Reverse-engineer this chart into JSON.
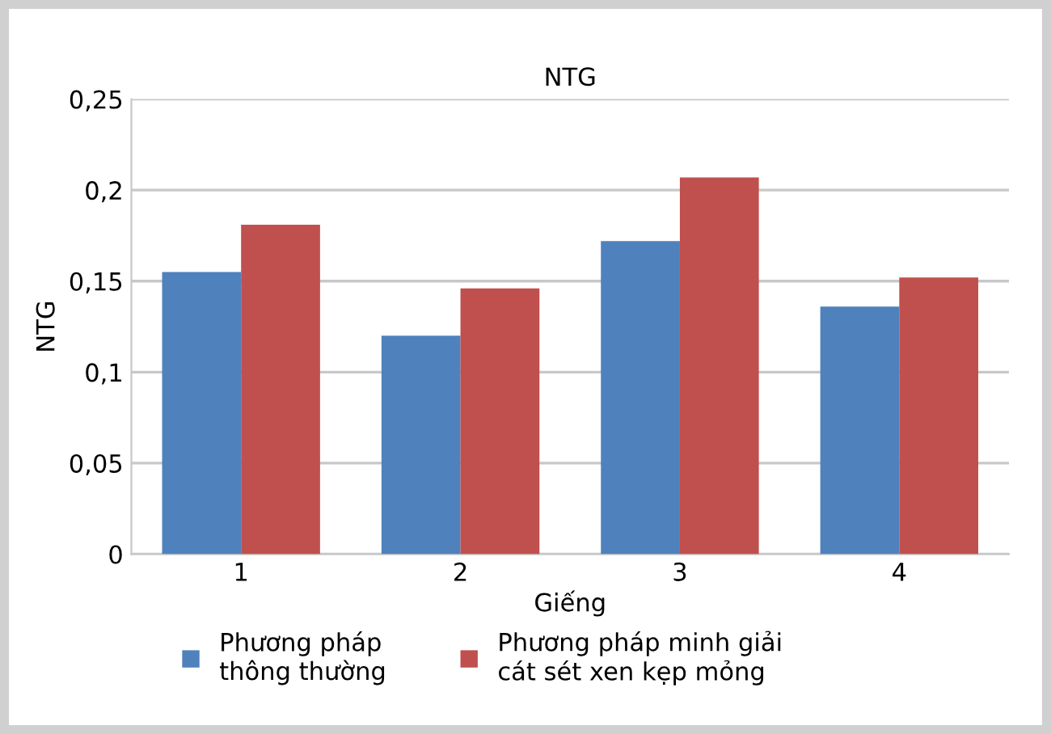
{
  "chart_data": {
    "type": "bar",
    "title": "NTG",
    "xlabel": "Giếng",
    "ylabel": "NTG",
    "categories": [
      "1",
      "2",
      "3",
      "4"
    ],
    "series": [
      {
        "name": "Phương pháp\nthông thường",
        "color": "#4f81bd",
        "values": [
          0.155,
          0.12,
          0.172,
          0.136
        ]
      },
      {
        "name": "Phương pháp minh giải\ncát sét xen kẹp mỏng",
        "color": "#c0504d",
        "values": [
          0.181,
          0.146,
          0.207,
          0.152
        ]
      }
    ],
    "ylim": [
      0,
      0.25
    ],
    "yticks": [
      {
        "value": 0,
        "label": "0"
      },
      {
        "value": 0.05,
        "label": "0,05"
      },
      {
        "value": 0.1,
        "label": "0,1"
      },
      {
        "value": 0.15,
        "label": "0,15"
      },
      {
        "value": 0.2,
        "label": "0,2"
      },
      {
        "value": 0.25,
        "label": "0,25"
      }
    ],
    "grid": "y",
    "legend": "bottom"
  }
}
